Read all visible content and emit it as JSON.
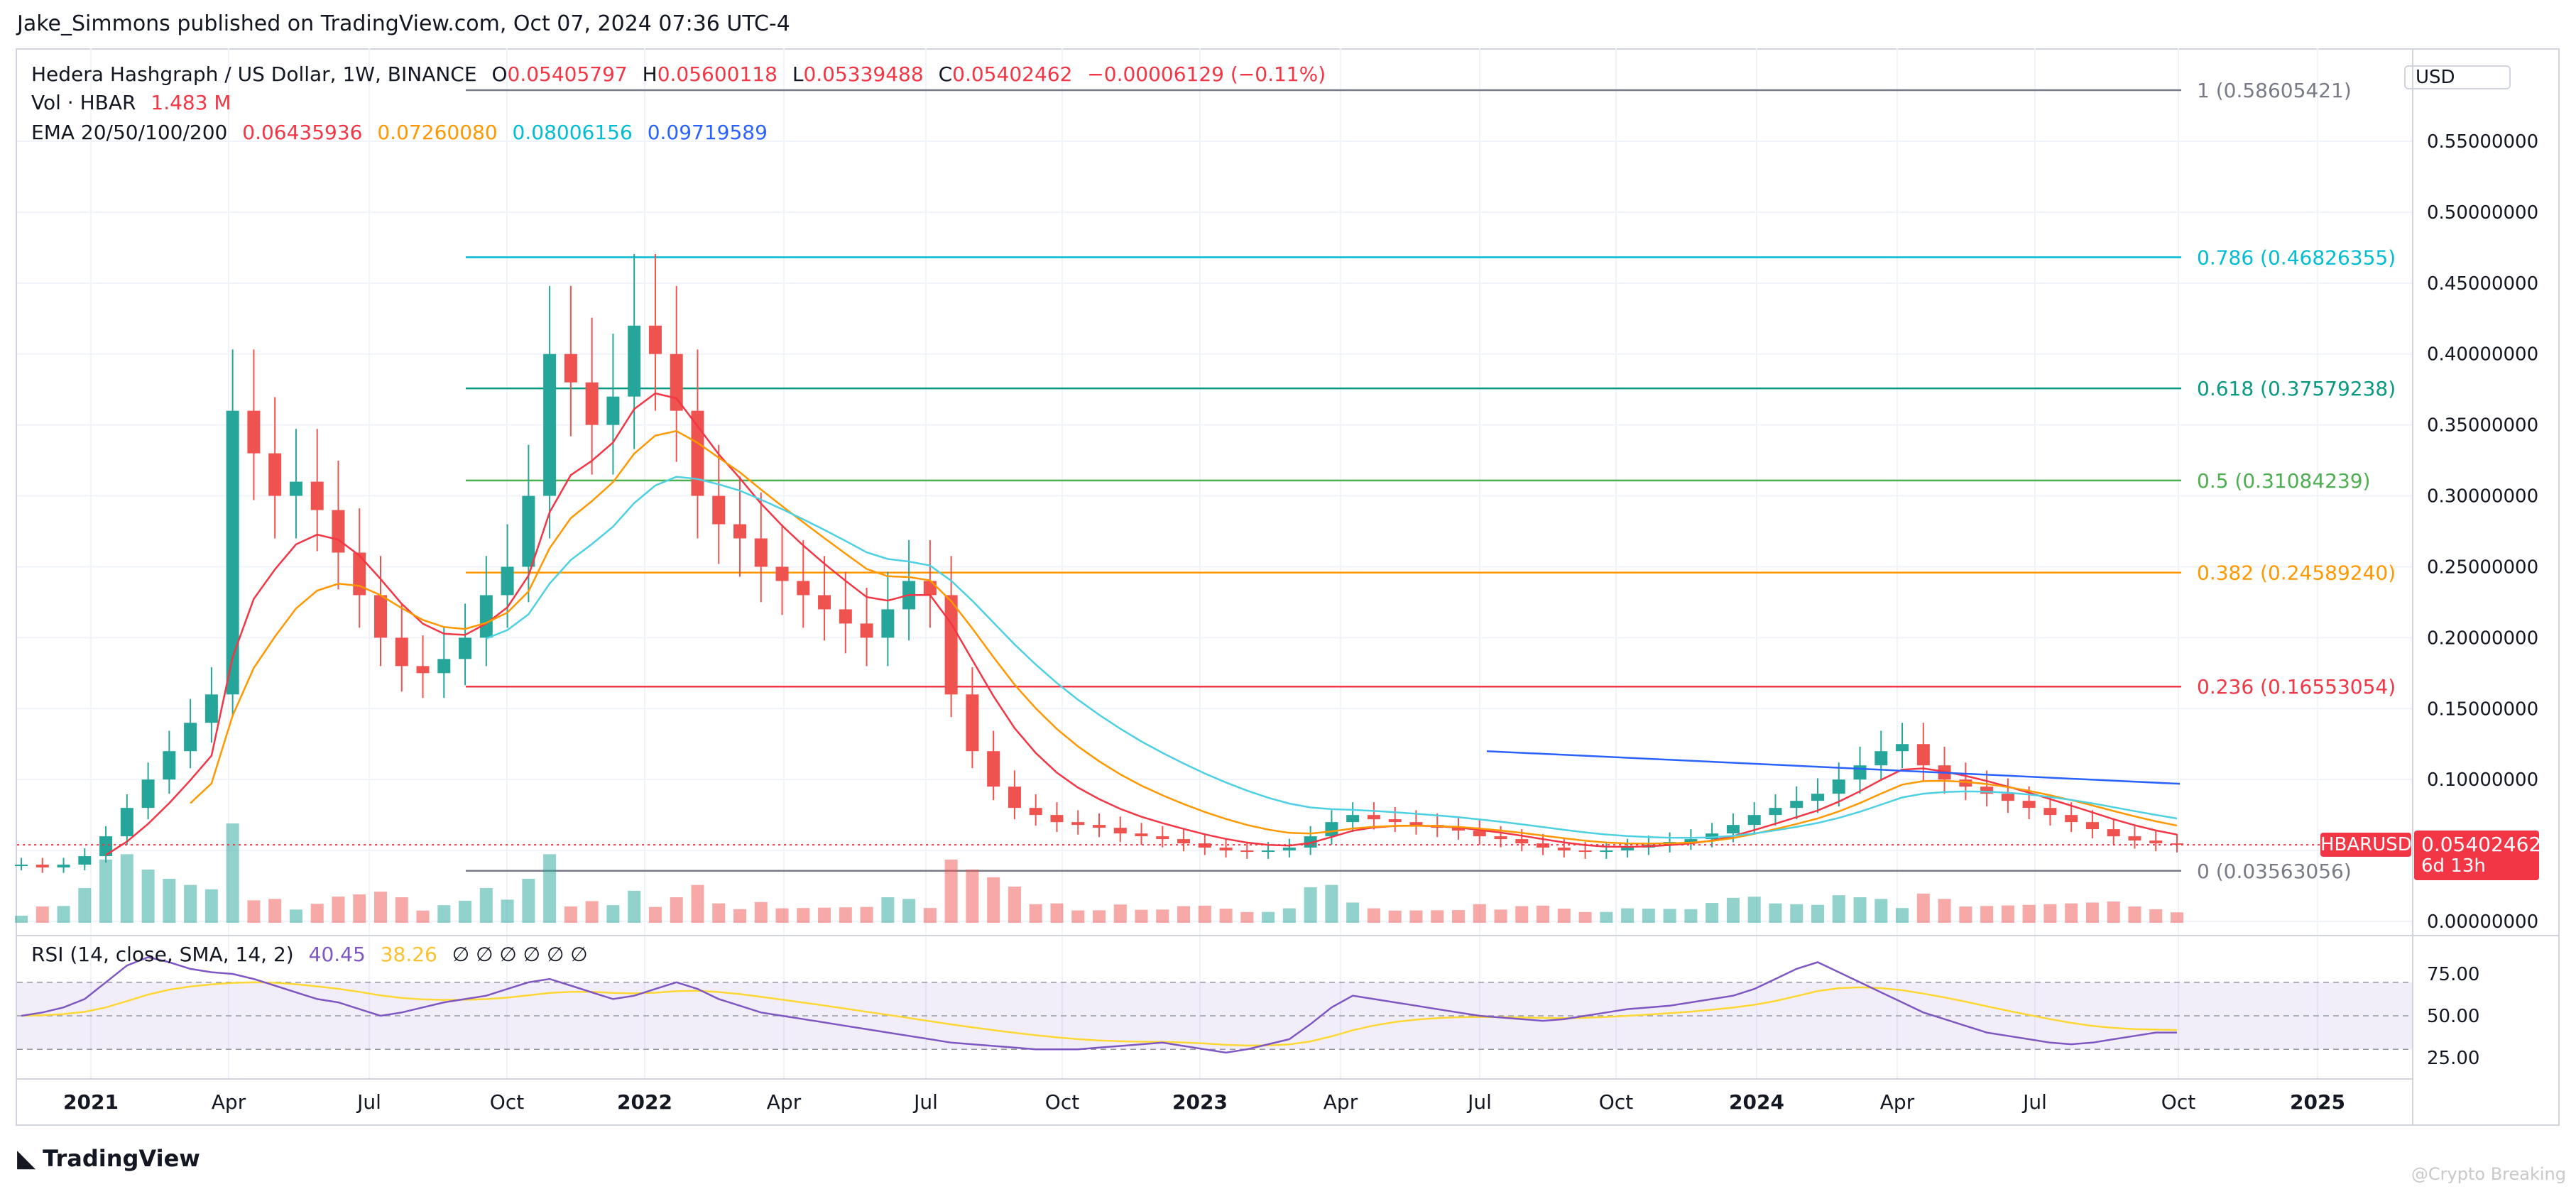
{
  "header": {
    "published": "Jake_Simmons published on TradingView.com, Oct 07, 2024 07:36 UTC-4"
  },
  "legend": {
    "title": "Hedera Hashgraph / US Dollar, 1W, BINANCE",
    "o_label": "O",
    "o_value": "0.05405797",
    "h_label": "H",
    "h_value": "0.05600118",
    "l_label": "L",
    "l_value": "0.05339488",
    "c_label": "C",
    "c_value": "0.05402462",
    "change": "−0.00006129 (−0.11%)",
    "vol_label": "Vol · HBAR",
    "vol_value": "1.483 M",
    "ema_label": "EMA 20/50/100/200",
    "ema20": "0.06435936",
    "ema50": "0.07260080",
    "ema100": "0.08006156",
    "ema200": "0.09719589"
  },
  "rsi_legend": {
    "label": "RSI (14, close, SMA, 14, 2)",
    "rsi": "40.45",
    "sma": "38.26",
    "empty": "∅ ∅ ∅ ∅ ∅ ∅"
  },
  "price_axis": {
    "currency": "USD"
  },
  "current_tag": {
    "symbol": "HBARUSD",
    "price": "0.05402462",
    "countdown": "6d 13h"
  },
  "footer": {
    "brand": "TradingView",
    "logo_icon": "tradingview-logo-icon",
    "watermark": "@Crypto Breaking"
  },
  "colors": {
    "up": "#26a69a",
    "down": "#ef5350",
    "ema20": "#f23645",
    "ema50": "#ff9800",
    "ema100": "#4dd0e1",
    "ema200": "#2962ff",
    "rsi": "#7e57c2",
    "rsi_sma": "#fdd835"
  },
  "chart_data": {
    "type": "candlestick",
    "y_ticks": [
      "0.55000000",
      "0.50000000",
      "0.45000000",
      "0.40000000",
      "0.35000000",
      "0.30000000",
      "0.25000000",
      "0.20000000",
      "0.15000000",
      "0.10000000",
      "0.05000000",
      "0.00000000"
    ],
    "x_ticks": [
      "2021",
      "Apr",
      "Jul",
      "Oct",
      "2022",
      "Apr",
      "Jul",
      "Oct",
      "2023",
      "Apr",
      "Jul",
      "Oct",
      "2024",
      "Apr",
      "Jul",
      "Oct",
      "2025"
    ],
    "fib_levels": [
      {
        "label": "1 (0.58605421)",
        "value": 0.58605421,
        "color": "#787b86"
      },
      {
        "label": "0.786 (0.46826355)",
        "value": 0.46826355,
        "color": "#00bcd4"
      },
      {
        "label": "0.618 (0.37579238)",
        "value": 0.37579238,
        "color": "#089981"
      },
      {
        "label": "0.5 (0.31084239)",
        "value": 0.31084239,
        "color": "#4caf50"
      },
      {
        "label": "0.382 (0.24589240)",
        "value": 0.2458924,
        "color": "#ff9800"
      },
      {
        "label": "0.236 (0.16553054)",
        "value": 0.16553054,
        "color": "#f23645"
      },
      {
        "label": "0 (0.03563056)",
        "value": 0.03563056,
        "color": "#787b86"
      }
    ],
    "rsi_ticks": [
      "75.00",
      "50.00",
      "25.00"
    ],
    "close_series": [
      0.04,
      0.038,
      0.04,
      0.046,
      0.06,
      0.08,
      0.1,
      0.12,
      0.14,
      0.16,
      0.36,
      0.33,
      0.3,
      0.31,
      0.29,
      0.26,
      0.23,
      0.2,
      0.18,
      0.175,
      0.185,
      0.2,
      0.23,
      0.25,
      0.3,
      0.4,
      0.38,
      0.35,
      0.37,
      0.42,
      0.4,
      0.36,
      0.3,
      0.28,
      0.27,
      0.25,
      0.24,
      0.23,
      0.22,
      0.21,
      0.2,
      0.22,
      0.24,
      0.23,
      0.16,
      0.12,
      0.095,
      0.08,
      0.075,
      0.07,
      0.068,
      0.066,
      0.062,
      0.06,
      0.058,
      0.055,
      0.052,
      0.05,
      0.049,
      0.05,
      0.052,
      0.06,
      0.07,
      0.075,
      0.072,
      0.07,
      0.068,
      0.066,
      0.064,
      0.06,
      0.058,
      0.055,
      0.052,
      0.05,
      0.049,
      0.05,
      0.052,
      0.054,
      0.056,
      0.058,
      0.062,
      0.068,
      0.075,
      0.08,
      0.085,
      0.09,
      0.1,
      0.11,
      0.12,
      0.125,
      0.11,
      0.1,
      0.095,
      0.09,
      0.085,
      0.08,
      0.075,
      0.07,
      0.065,
      0.06,
      0.057,
      0.055,
      0.054
    ],
    "rsi_series": [
      50,
      52,
      55,
      60,
      70,
      80,
      85,
      82,
      78,
      76,
      75,
      72,
      68,
      64,
      60,
      58,
      54,
      50,
      52,
      55,
      58,
      60,
      62,
      66,
      70,
      72,
      68,
      64,
      60,
      62,
      66,
      70,
      66,
      60,
      56,
      52,
      50,
      48,
      46,
      44,
      42,
      40,
      38,
      36,
      34,
      33,
      32,
      31,
      30,
      30,
      30,
      31,
      32,
      33,
      34,
      32,
      30,
      28,
      30,
      33,
      36,
      45,
      55,
      62,
      60,
      58,
      56,
      54,
      52,
      50,
      49,
      48,
      47,
      48,
      50,
      52,
      54,
      55,
      56,
      58,
      60,
      62,
      66,
      72,
      78,
      82,
      76,
      70,
      64,
      58,
      52,
      48,
      44,
      40,
      38,
      36,
      34,
      33,
      34,
      36,
      38,
      40,
      40
    ]
  }
}
